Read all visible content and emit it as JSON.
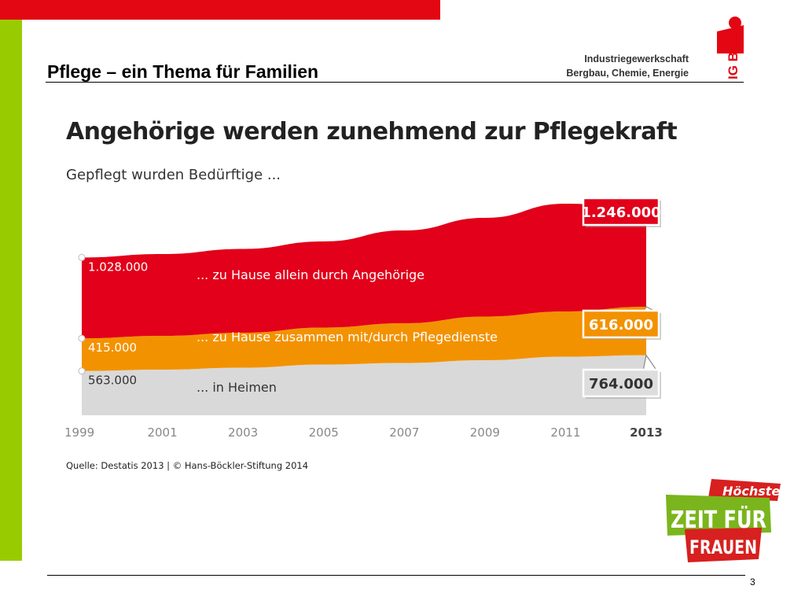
{
  "slide": {
    "title": "Pflege – ein Thema für Familien",
    "page_number": "3",
    "source": "Quelle: Destatis 2013 | © Hans-Böckler-Stiftung 2014"
  },
  "logo": {
    "line1": "Industriegewerkschaft",
    "line2": "Bergbau, Chemie, Energie",
    "brand": "IG BCE",
    "brand_color": "#e30613"
  },
  "badge": {
    "line1": "Höchste",
    "line2": "ZEIT FÜR",
    "line3": "FRAUEN",
    "green": "#7ab51d",
    "red": "#d7201f"
  },
  "colors": {
    "topbar": "#e30613",
    "sidebar": "#99cc00",
    "angehoerige": "#e2001a",
    "pflegedienste": "#f39200",
    "heime": "#d9d9d9"
  },
  "chart_data": {
    "type": "area",
    "stacked": true,
    "title": "Angehörige werden zunehmend zur Pflegekraft",
    "subtitle": "Gepflegt wurden Bedürftige ...",
    "x": [
      1999,
      2001,
      2003,
      2005,
      2007,
      2009,
      2011,
      2013
    ],
    "x_tick_labels": [
      "1999",
      "2001",
      "2003",
      "2005",
      "2007",
      "2009",
      "2011",
      "2013"
    ],
    "series": [
      {
        "name": "... in Heimen",
        "values": [
          563000,
          580000,
          605000,
          645000,
          665000,
          700000,
          745000,
          764000
        ]
      },
      {
        "name": "... zu Hause zusammen mit/durch Pflegedienste",
        "values": [
          415000,
          430000,
          445000,
          470000,
          505000,
          555000,
          575000,
          616000
        ]
      },
      {
        "name": "... zu Hause allein durch Angehörige",
        "values": [
          1028000,
          1040000,
          1065000,
          1095000,
          1180000,
          1255000,
          1370000,
          1246000
        ]
      }
    ],
    "start_labels": [
      "563.000",
      "415.000",
      "1.028.000"
    ],
    "end_labels": [
      "764.000",
      "616.000",
      "1.246.000"
    ],
    "ylim": [
      0,
      3000000
    ],
    "grid": false,
    "legend": "inline"
  }
}
